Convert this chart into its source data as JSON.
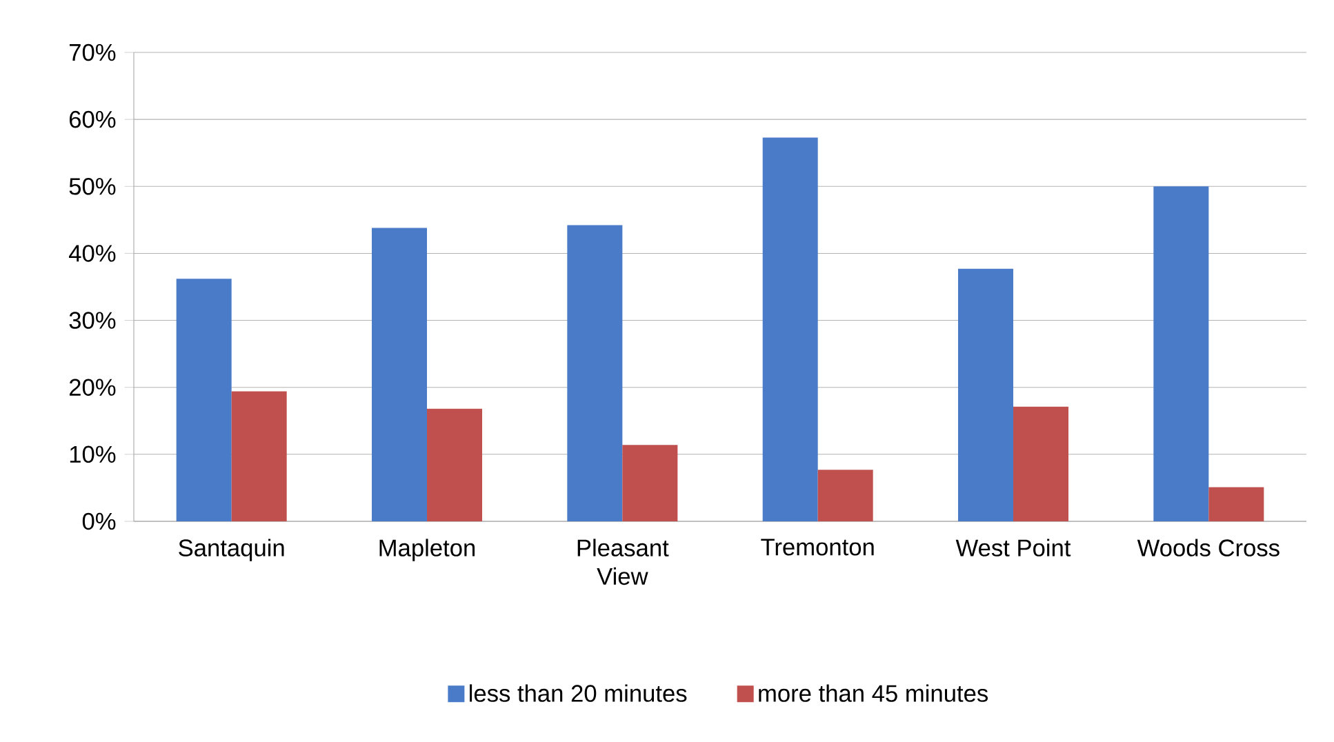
{
  "chart_data": {
    "type": "bar",
    "categories": [
      "Santaquin",
      "Mapleton",
      "Pleasant View",
      "Tremonton",
      "West Point",
      "Woods Cross"
    ],
    "series": [
      {
        "name": "less than 20 minutes",
        "color": "#4a7bc8",
        "values": [
          36.2,
          43.8,
          44.2,
          57.3,
          37.7,
          50.0
        ]
      },
      {
        "name": "more than 45 minutes",
        "color": "#c0504d",
        "values": [
          19.4,
          16.8,
          11.4,
          7.7,
          17.1,
          5.1
        ]
      }
    ],
    "ylim": [
      0,
      70
    ],
    "yticks": [
      {
        "value": 0,
        "label": "0%"
      },
      {
        "value": 10,
        "label": "10%"
      },
      {
        "value": 20,
        "label": "20%"
      },
      {
        "value": 30,
        "label": "30%"
      },
      {
        "value": 40,
        "label": "40%"
      },
      {
        "value": 50,
        "label": "50%"
      },
      {
        "value": 60,
        "label": "60%"
      },
      {
        "value": 70,
        "label": "70%"
      }
    ],
    "grid": "y",
    "legend": "bottom"
  }
}
